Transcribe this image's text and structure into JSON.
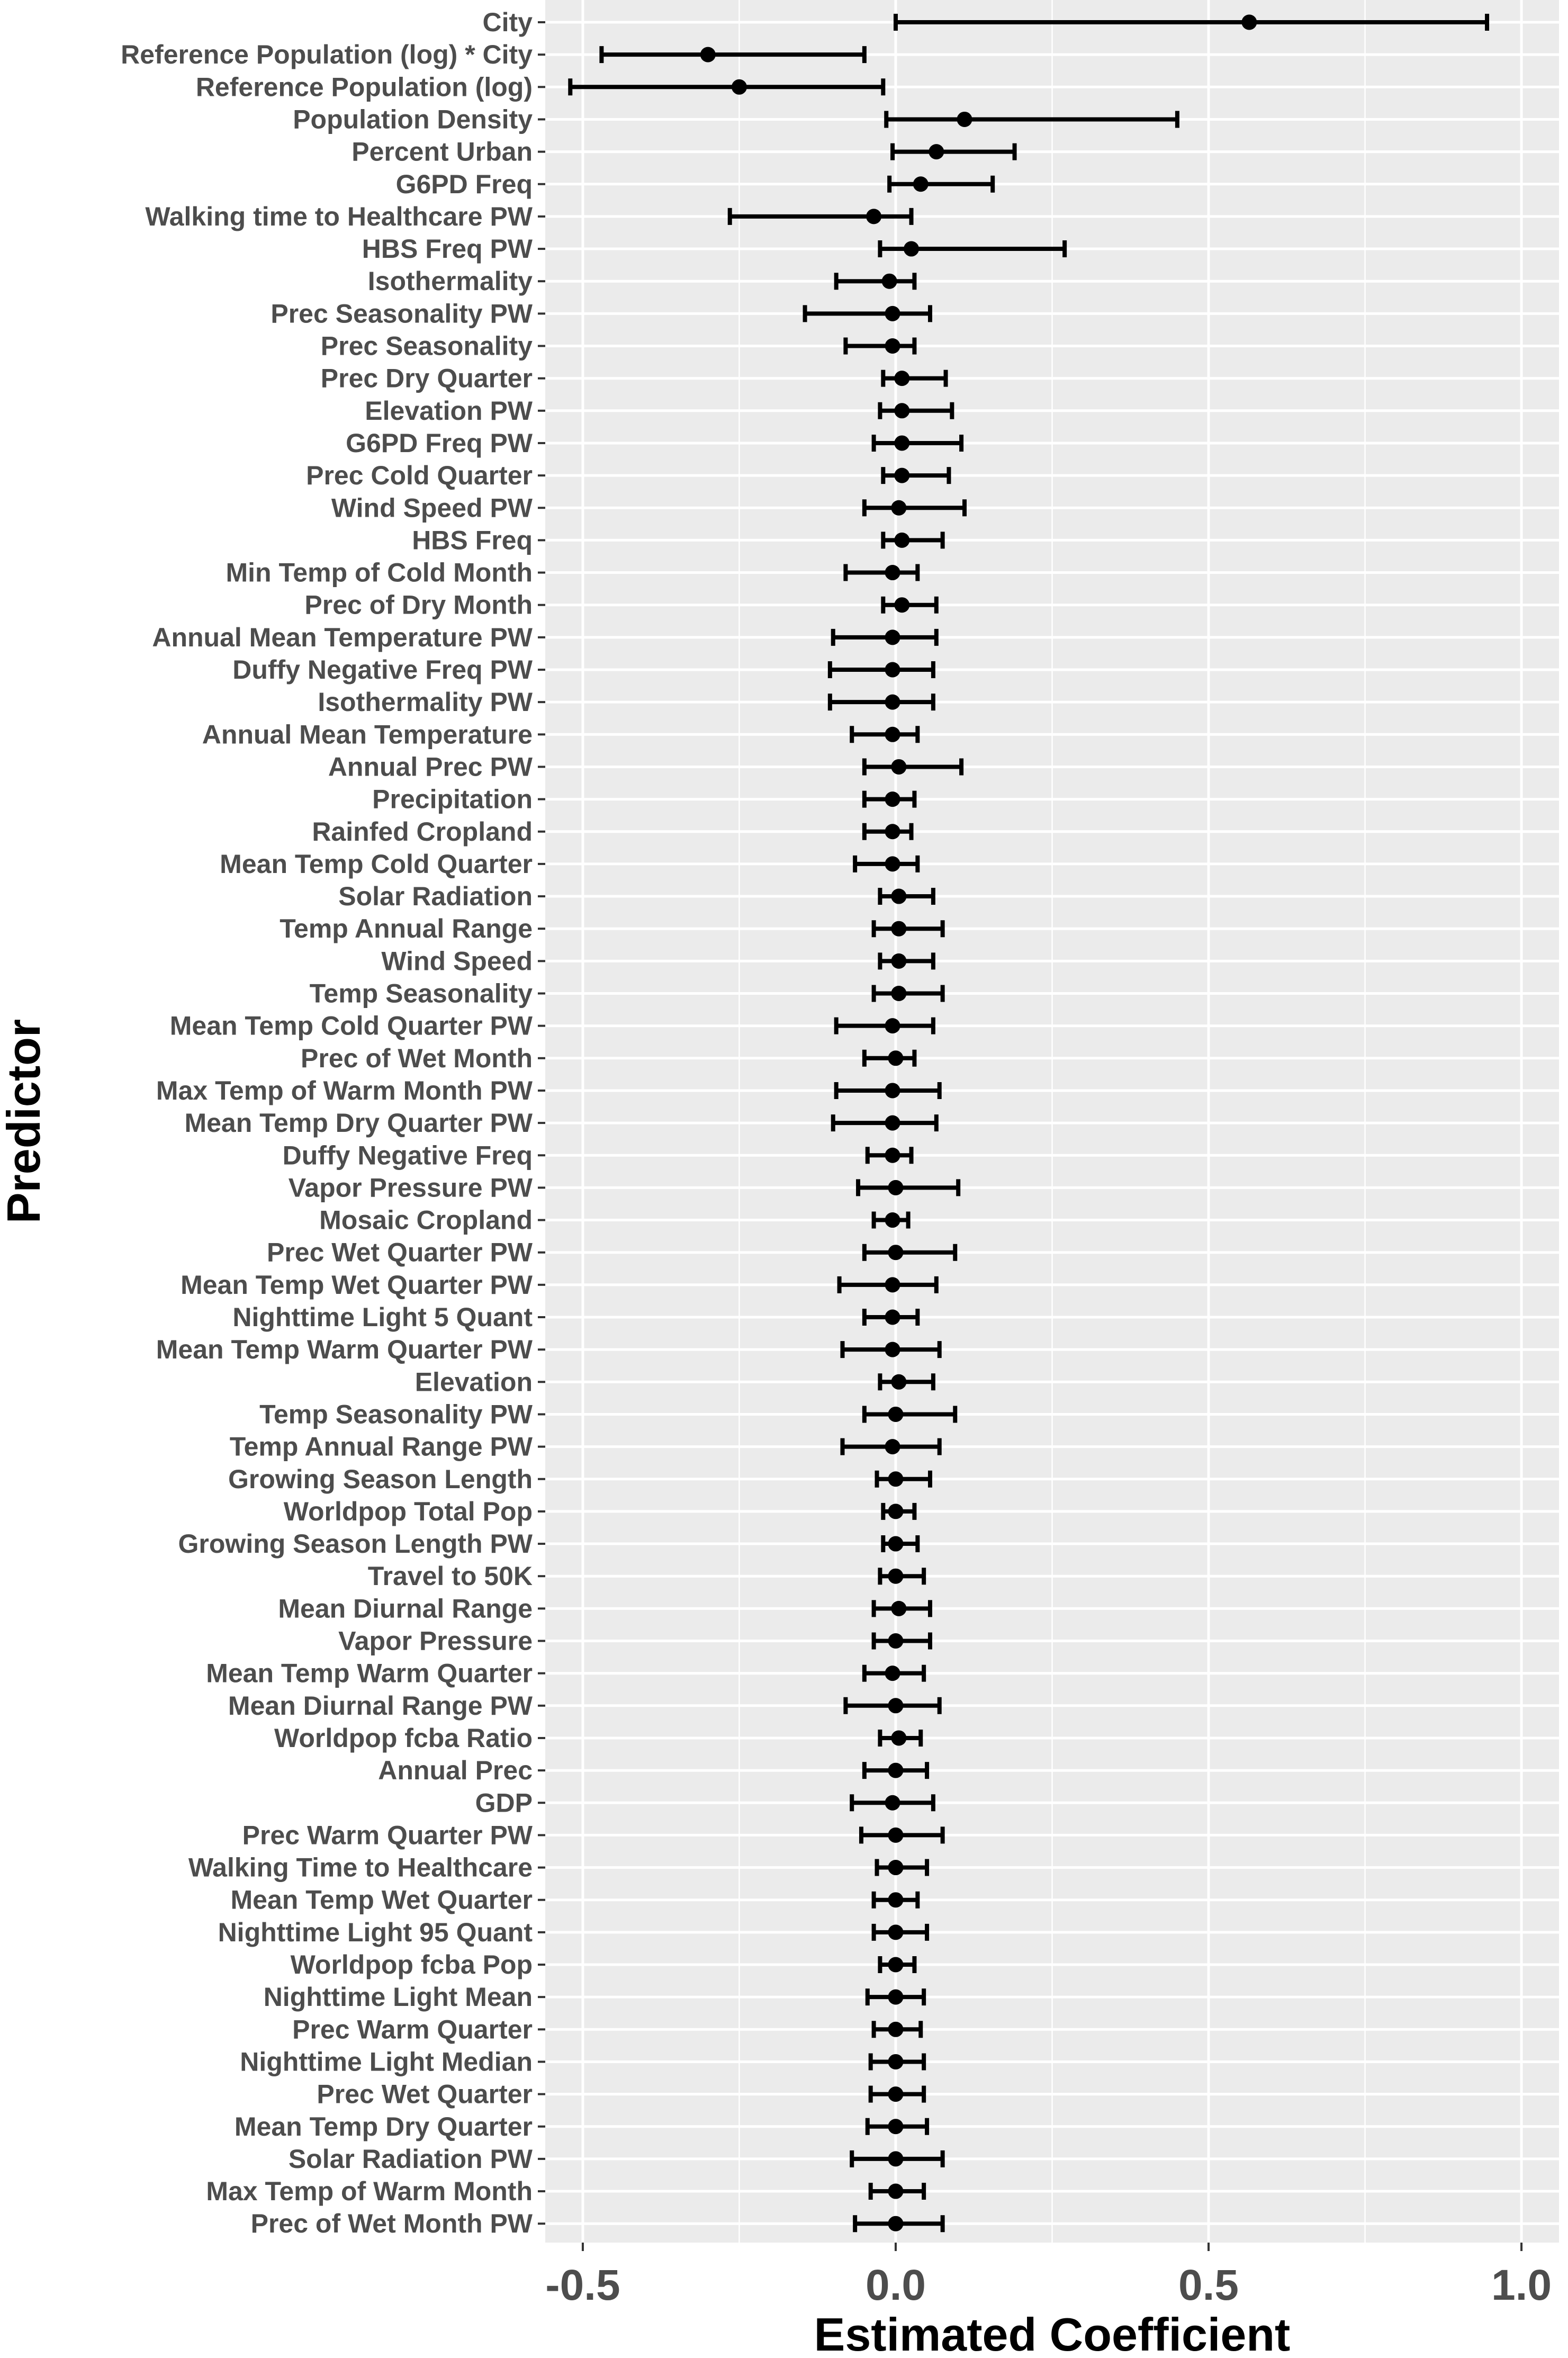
{
  "chart_data": {
    "type": "forest",
    "xlabel": "Estimated Coefficient",
    "ylabel": "Predictor",
    "xlim": [
      -0.56,
      1.06
    ],
    "x_ticks": [
      -0.5,
      0.0,
      0.5,
      1.0
    ],
    "x_tick_labels": [
      "-0.5",
      "0.0",
      "0.5",
      "1.0"
    ],
    "grid": true,
    "colors": {
      "panel": "#ebebeb",
      "grid": "#ffffff",
      "mark": "#000000",
      "tick_text": "#4d4d4d"
    },
    "predictors": [
      {
        "label": "City",
        "estimate": 0.565,
        "lower": 0.0,
        "upper": 0.945
      },
      {
        "label": "Reference Population (log) * City",
        "estimate": -0.3,
        "lower": -0.47,
        "upper": -0.05
      },
      {
        "label": "Reference Population (log)",
        "estimate": -0.25,
        "lower": -0.52,
        "upper": -0.02
      },
      {
        "label": "Population Density",
        "estimate": 0.11,
        "lower": -0.015,
        "upper": 0.45
      },
      {
        "label": "Percent Urban",
        "estimate": 0.065,
        "lower": -0.005,
        "upper": 0.19
      },
      {
        "label": "G6PD Freq",
        "estimate": 0.04,
        "lower": -0.01,
        "upper": 0.155
      },
      {
        "label": "Walking time to Healthcare PW",
        "estimate": -0.035,
        "lower": -0.265,
        "upper": 0.025
      },
      {
        "label": "HBS Freq PW",
        "estimate": 0.025,
        "lower": -0.025,
        "upper": 0.27
      },
      {
        "label": "Isothermality",
        "estimate": -0.01,
        "lower": -0.095,
        "upper": 0.03
      },
      {
        "label": "Prec Seasonality PW",
        "estimate": -0.005,
        "lower": -0.145,
        "upper": 0.055
      },
      {
        "label": "Prec Seasonality",
        "estimate": -0.005,
        "lower": -0.08,
        "upper": 0.03
      },
      {
        "label": "Prec Dry Quarter",
        "estimate": 0.01,
        "lower": -0.02,
        "upper": 0.08
      },
      {
        "label": "Elevation PW",
        "estimate": 0.01,
        "lower": -0.025,
        "upper": 0.09
      },
      {
        "label": "G6PD Freq PW",
        "estimate": 0.01,
        "lower": -0.035,
        "upper": 0.105
      },
      {
        "label": "Prec Cold Quarter",
        "estimate": 0.01,
        "lower": -0.02,
        "upper": 0.085
      },
      {
        "label": "Wind Speed PW",
        "estimate": 0.005,
        "lower": -0.05,
        "upper": 0.11
      },
      {
        "label": "HBS Freq",
        "estimate": 0.01,
        "lower": -0.02,
        "upper": 0.075
      },
      {
        "label": "Min Temp of Cold Month",
        "estimate": -0.005,
        "lower": -0.08,
        "upper": 0.035
      },
      {
        "label": "Prec of Dry Month",
        "estimate": 0.01,
        "lower": -0.02,
        "upper": 0.065
      },
      {
        "label": "Annual Mean Temperature PW",
        "estimate": -0.005,
        "lower": -0.1,
        "upper": 0.065
      },
      {
        "label": "Duffy Negative Freq PW",
        "estimate": -0.005,
        "lower": -0.105,
        "upper": 0.06
      },
      {
        "label": "Isothermality PW",
        "estimate": -0.005,
        "lower": -0.105,
        "upper": 0.06
      },
      {
        "label": "Annual Mean Temperature",
        "estimate": -0.005,
        "lower": -0.07,
        "upper": 0.035
      },
      {
        "label": "Annual Prec PW",
        "estimate": 0.005,
        "lower": -0.05,
        "upper": 0.105
      },
      {
        "label": "Precipitation",
        "estimate": -0.005,
        "lower": -0.05,
        "upper": 0.03
      },
      {
        "label": "Rainfed Cropland",
        "estimate": -0.005,
        "lower": -0.05,
        "upper": 0.025
      },
      {
        "label": "Mean Temp Cold Quarter",
        "estimate": -0.005,
        "lower": -0.065,
        "upper": 0.035
      },
      {
        "label": "Solar Radiation",
        "estimate": 0.005,
        "lower": -0.025,
        "upper": 0.06
      },
      {
        "label": "Temp Annual Range",
        "estimate": 0.005,
        "lower": -0.035,
        "upper": 0.075
      },
      {
        "label": "Wind Speed",
        "estimate": 0.005,
        "lower": -0.025,
        "upper": 0.06
      },
      {
        "label": "Temp Seasonality",
        "estimate": 0.005,
        "lower": -0.035,
        "upper": 0.075
      },
      {
        "label": "Mean Temp Cold Quarter PW",
        "estimate": -0.005,
        "lower": -0.095,
        "upper": 0.06
      },
      {
        "label": "Prec of Wet Month",
        "estimate": 0.0,
        "lower": -0.05,
        "upper": 0.03
      },
      {
        "label": "Max Temp of Warm Month PW",
        "estimate": -0.005,
        "lower": -0.095,
        "upper": 0.07
      },
      {
        "label": "Mean Temp Dry Quarter PW",
        "estimate": -0.005,
        "lower": -0.1,
        "upper": 0.065
      },
      {
        "label": "Duffy Negative Freq",
        "estimate": -0.005,
        "lower": -0.045,
        "upper": 0.025
      },
      {
        "label": "Vapor Pressure PW",
        "estimate": 0.0,
        "lower": -0.06,
        "upper": 0.1
      },
      {
        "label": "Mosaic Cropland",
        "estimate": -0.005,
        "lower": -0.035,
        "upper": 0.02
      },
      {
        "label": "Prec Wet Quarter PW",
        "estimate": 0.0,
        "lower": -0.05,
        "upper": 0.095
      },
      {
        "label": "Mean Temp Wet Quarter PW",
        "estimate": -0.005,
        "lower": -0.09,
        "upper": 0.065
      },
      {
        "label": "Nighttime Light 5 Quant",
        "estimate": -0.005,
        "lower": -0.05,
        "upper": 0.035
      },
      {
        "label": "Mean Temp Warm Quarter PW",
        "estimate": -0.005,
        "lower": -0.085,
        "upper": 0.07
      },
      {
        "label": "Elevation",
        "estimate": 0.005,
        "lower": -0.025,
        "upper": 0.06
      },
      {
        "label": "Temp Seasonality PW",
        "estimate": 0.0,
        "lower": -0.05,
        "upper": 0.095
      },
      {
        "label": "Temp Annual Range PW",
        "estimate": -0.005,
        "lower": -0.085,
        "upper": 0.07
      },
      {
        "label": "Growing Season Length",
        "estimate": 0.0,
        "lower": -0.03,
        "upper": 0.055
      },
      {
        "label": "Worldpop Total Pop",
        "estimate": 0.0,
        "lower": -0.02,
        "upper": 0.03
      },
      {
        "label": "Growing Season Length PW",
        "estimate": 0.0,
        "lower": -0.02,
        "upper": 0.035
      },
      {
        "label": "Travel to 50K",
        "estimate": 0.0,
        "lower": -0.025,
        "upper": 0.045
      },
      {
        "label": "Mean Diurnal Range",
        "estimate": 0.005,
        "lower": -0.035,
        "upper": 0.055
      },
      {
        "label": "Vapor Pressure",
        "estimate": 0.0,
        "lower": -0.035,
        "upper": 0.055
      },
      {
        "label": "Mean Temp Warm Quarter",
        "estimate": -0.005,
        "lower": -0.05,
        "upper": 0.045
      },
      {
        "label": "Mean Diurnal Range PW",
        "estimate": 0.0,
        "lower": -0.08,
        "upper": 0.07
      },
      {
        "label": "Worldpop fcba Ratio",
        "estimate": 0.005,
        "lower": -0.025,
        "upper": 0.04
      },
      {
        "label": "Annual Prec",
        "estimate": 0.0,
        "lower": -0.05,
        "upper": 0.05
      },
      {
        "label": "GDP",
        "estimate": -0.005,
        "lower": -0.07,
        "upper": 0.06
      },
      {
        "label": "Prec Warm Quarter PW",
        "estimate": 0.0,
        "lower": -0.055,
        "upper": 0.075
      },
      {
        "label": "Walking Time to Healthcare",
        "estimate": 0.0,
        "lower": -0.03,
        "upper": 0.05
      },
      {
        "label": "Mean Temp Wet Quarter",
        "estimate": 0.0,
        "lower": -0.035,
        "upper": 0.035
      },
      {
        "label": "Nighttime Light 95 Quant",
        "estimate": 0.0,
        "lower": -0.035,
        "upper": 0.05
      },
      {
        "label": "Worldpop fcba Pop",
        "estimate": 0.0,
        "lower": -0.025,
        "upper": 0.03
      },
      {
        "label": "Nighttime Light Mean",
        "estimate": 0.0,
        "lower": -0.045,
        "upper": 0.045
      },
      {
        "label": "Prec Warm Quarter",
        "estimate": 0.0,
        "lower": -0.035,
        "upper": 0.04
      },
      {
        "label": "Nighttime Light Median",
        "estimate": 0.0,
        "lower": -0.04,
        "upper": 0.045
      },
      {
        "label": "Prec Wet Quarter",
        "estimate": 0.0,
        "lower": -0.04,
        "upper": 0.045
      },
      {
        "label": "Mean Temp Dry Quarter",
        "estimate": 0.0,
        "lower": -0.045,
        "upper": 0.05
      },
      {
        "label": "Solar Radiation PW",
        "estimate": 0.0,
        "lower": -0.07,
        "upper": 0.075
      },
      {
        "label": "Max Temp of Warm Month",
        "estimate": 0.0,
        "lower": -0.04,
        "upper": 0.045
      },
      {
        "label": "Prec of Wet Month PW",
        "estimate": 0.0,
        "lower": -0.065,
        "upper": 0.075
      }
    ]
  }
}
